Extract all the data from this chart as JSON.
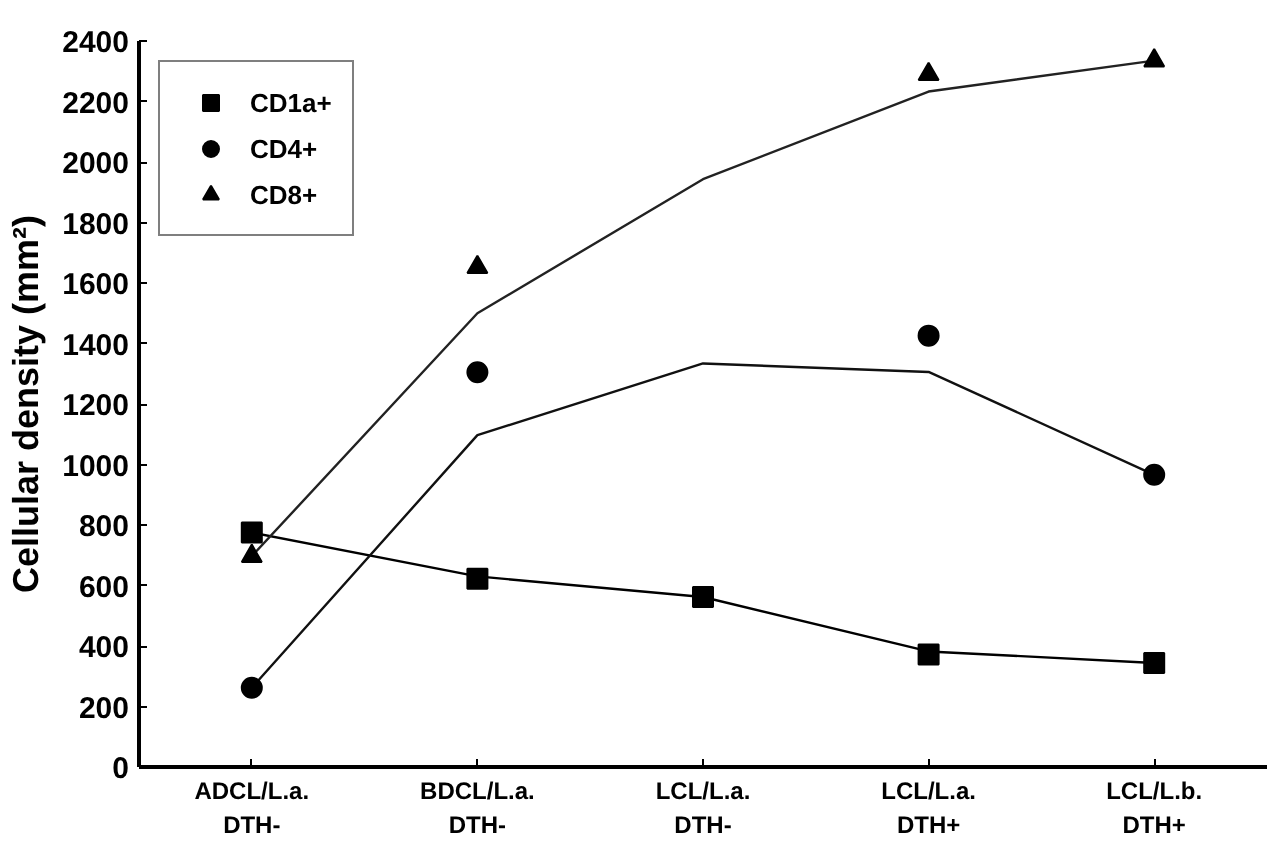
{
  "chart_data": {
    "type": "scatter",
    "ylabel": "Cellular density (mm²)",
    "categories": [
      "ADCL/L.a.\nDTH-",
      "BDCL/L.a.\nDTH-",
      "LCL/L.a.\nDTH-",
      "LCL/L.a.\nDTH+",
      "LCL/L.b.\nDTH+"
    ],
    "ylim": [
      0,
      2400
    ],
    "yticks": [
      0,
      200,
      400,
      600,
      800,
      1000,
      1200,
      1400,
      1600,
      1800,
      2000,
      2200,
      2400
    ],
    "grid": false,
    "legend": "top left",
    "series": [
      {
        "name": "CD1a+",
        "color": "#000000",
        "marker": "square",
        "values": [
          775,
          622,
          562,
          372,
          344
        ]
      },
      {
        "name": "CD4+",
        "color": "#000000",
        "marker": "circle",
        "values": [
          262,
          1305,
          null,
          1426,
          966
        ]
      },
      {
        "name": "CD8+",
        "color": "#000000",
        "marker": "triangle",
        "values": [
          697,
          1652,
          null,
          2290,
          2335
        ]
      },
      {
        "type": "line",
        "color": "#000000",
        "values": [
          775,
          630,
          562,
          382,
          344
        ]
      },
      {
        "type": "line",
        "color": "#111111",
        "values": [
          262,
          1097,
          1334,
          1306,
          966
        ]
      },
      {
        "type": "line",
        "color": "#222222",
        "values": [
          697,
          1500,
          1943,
          2233,
          2335
        ]
      }
    ]
  }
}
